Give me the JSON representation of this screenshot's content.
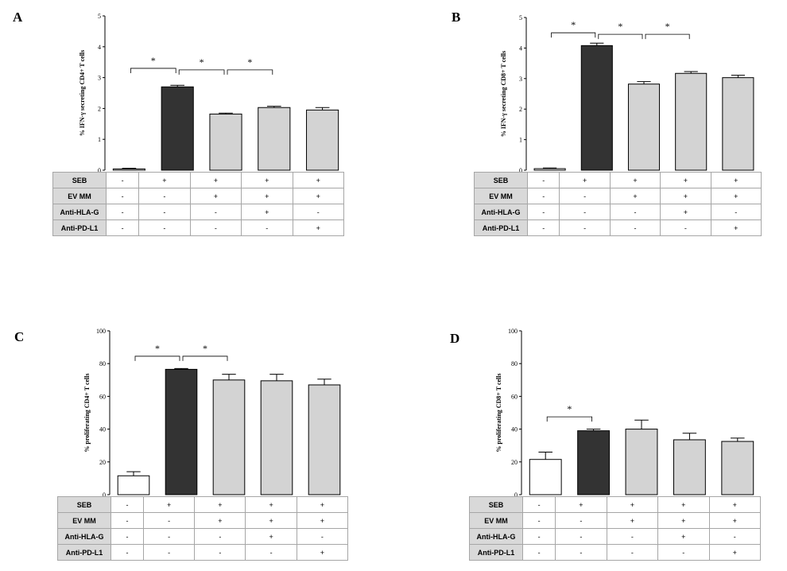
{
  "panels": [
    {
      "letter": "A",
      "chart_data": {
        "type": "bar",
        "ylabel": "% IFN-γ secreting CD4+ T cells",
        "ylim": [
          0,
          5
        ],
        "yticks": [
          "0",
          "1",
          "2",
          "3",
          "4",
          "5"
        ],
        "values": [
          0.04,
          2.7,
          1.82,
          2.03,
          1.95
        ],
        "errors": [
          0.02,
          0.05,
          0.03,
          0.04,
          0.08
        ],
        "bar_colors": [
          "#ffffff",
          "#333333",
          "#d3d3d3",
          "#d3d3d3",
          "#d3d3d3"
        ],
        "significance": [
          {
            "from": 0,
            "to": 1,
            "y": 3.3,
            "label": "*"
          },
          {
            "from": 1,
            "to": 2,
            "y": 3.25,
            "label": "*"
          },
          {
            "from": 2,
            "to": 3,
            "y": 3.25,
            "label": "*"
          }
        ]
      },
      "table": [
        {
          "label": "SEB",
          "values": [
            "-",
            "+",
            "+",
            "+",
            "+"
          ]
        },
        {
          "label": "EV MM",
          "values": [
            "-",
            "-",
            "+",
            "+",
            "+"
          ]
        },
        {
          "label": "Anti-HLA-G",
          "values": [
            "-",
            "-",
            "-",
            "+",
            "-"
          ]
        },
        {
          "label": "Anti-PD-L1",
          "values": [
            "-",
            "-",
            "-",
            "-",
            "+"
          ]
        }
      ]
    },
    {
      "letter": "B",
      "chart_data": {
        "type": "bar",
        "ylabel": "% IFN-γ secreting CD8+ T cells",
        "ylim": [
          0,
          5
        ],
        "yticks": [
          "0",
          "1",
          "2",
          "3",
          "4",
          "5"
        ],
        "values": [
          0.05,
          4.08,
          2.82,
          3.17,
          3.03
        ],
        "errors": [
          0.02,
          0.08,
          0.08,
          0.06,
          0.08
        ],
        "bar_colors": [
          "#ffffff",
          "#333333",
          "#d3d3d3",
          "#d3d3d3",
          "#d3d3d3"
        ],
        "significance": [
          {
            "from": 0,
            "to": 1,
            "y": 4.5,
            "label": "*"
          },
          {
            "from": 1,
            "to": 2,
            "y": 4.45,
            "label": "*"
          },
          {
            "from": 2,
            "to": 3,
            "y": 4.45,
            "label": "*"
          }
        ]
      },
      "table": [
        {
          "label": "SEB",
          "values": [
            "-",
            "+",
            "+",
            "+",
            "+"
          ]
        },
        {
          "label": "EV MM",
          "values": [
            "-",
            "-",
            "+",
            "+",
            "+"
          ]
        },
        {
          "label": "Anti-HLA-G",
          "values": [
            "-",
            "-",
            "-",
            "+",
            "-"
          ]
        },
        {
          "label": "Anti-PD-L1",
          "values": [
            "-",
            "-",
            "-",
            "-",
            "+"
          ]
        }
      ]
    },
    {
      "letter": "C",
      "chart_data": {
        "type": "bar",
        "ylabel": "% proliferating CD4+ T cells",
        "ylim": [
          0,
          100
        ],
        "yticks": [
          "0",
          "20",
          "40",
          "60",
          "80",
          "100"
        ],
        "values": [
          11.5,
          76.5,
          70,
          69.5,
          67
        ],
        "errors": [
          2.5,
          0.5,
          3.5,
          4,
          3.5
        ],
        "bar_colors": [
          "#ffffff",
          "#333333",
          "#d3d3d3",
          "#d3d3d3",
          "#d3d3d3"
        ],
        "significance": [
          {
            "from": 0,
            "to": 1,
            "y": 84.5,
            "label": "*"
          },
          {
            "from": 1,
            "to": 2,
            "y": 84.5,
            "label": "*"
          }
        ]
      },
      "table": [
        {
          "label": "SEB",
          "values": [
            "-",
            "+",
            "+",
            "+",
            "+"
          ]
        },
        {
          "label": "EV MM",
          "values": [
            "-",
            "-",
            "+",
            "+",
            "+"
          ]
        },
        {
          "label": "Anti-HLA-G",
          "values": [
            "-",
            "-",
            "-",
            "+",
            "-"
          ]
        },
        {
          "label": "Anti-PD-L1",
          "values": [
            "-",
            "-",
            "-",
            "-",
            "+"
          ]
        }
      ]
    },
    {
      "letter": "D",
      "chart_data": {
        "type": "bar",
        "ylabel": "% proliferating CD8+ T cells",
        "ylim": [
          0,
          100
        ],
        "yticks": [
          "0",
          "20",
          "40",
          "60",
          "80",
          "100"
        ],
        "values": [
          21.5,
          39,
          40,
          33.5,
          32.5
        ],
        "errors": [
          4.5,
          1,
          5.5,
          4,
          2
        ],
        "bar_colors": [
          "#ffffff",
          "#333333",
          "#d3d3d3",
          "#d3d3d3",
          "#d3d3d3"
        ],
        "significance": [
          {
            "from": 0,
            "to": 1,
            "y": 47.5,
            "label": "*"
          }
        ]
      },
      "table": [
        {
          "label": "SEB",
          "values": [
            "-",
            "+",
            "+",
            "+",
            "+"
          ]
        },
        {
          "label": "EV MM",
          "values": [
            "-",
            "-",
            "+",
            "+",
            "+"
          ]
        },
        {
          "label": "Anti-HLA-G",
          "values": [
            "-",
            "-",
            "-",
            "+",
            "-"
          ]
        },
        {
          "label": "Anti-PD-L1",
          "values": [
            "-",
            "-",
            "-",
            "-",
            "+"
          ]
        }
      ]
    }
  ]
}
